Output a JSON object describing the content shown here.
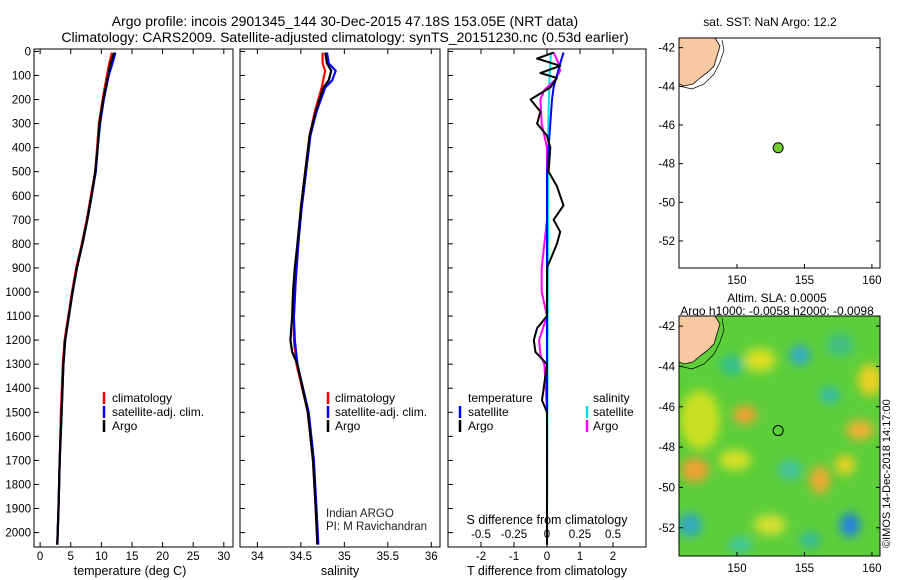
{
  "figure": {
    "title_line1": "Argo profile: incois 2901345_144 30-Dec-2015 47.18S 153.05E (NRT data)",
    "title_line2": "Climatology: CARS2009. Satellite-adjusted climatology: synTS_20151230.nc (0.53d earlier)",
    "watermark": "©IMOS 14-Dec-2018 14:17:00",
    "credit_line1": "Indian ARGO",
    "credit_line2": "PI: M Ravichandran"
  },
  "colors": {
    "climatology": "#ff0000",
    "satellite": "#0000ff",
    "argo": "#000000",
    "temp_diff": "#000000",
    "salt_diff": "#ff00ff",
    "salt_sat": "#00e0f0",
    "land": "#f8c8a0",
    "profile_dot": "#70d030"
  },
  "chart_data": [
    {
      "id": "temperature",
      "type": "line",
      "xlabel": "temperature (deg C)",
      "xlim": [
        -1,
        31.5
      ],
      "ylim": [
        2060,
        -10
      ],
      "xticks": [
        0,
        5,
        10,
        15,
        20,
        25,
        30
      ],
      "yticks": [
        0,
        100,
        200,
        300,
        400,
        500,
        600,
        700,
        800,
        900,
        1000,
        1100,
        1200,
        1300,
        1400,
        1500,
        1600,
        1700,
        1800,
        1900,
        2000
      ],
      "legend": [
        "climatology",
        "satellite-adj. clim.",
        "Argo"
      ],
      "series": [
        {
          "name": "climatology",
          "depth": [
            5,
            50,
            100,
            200,
            300,
            400,
            500,
            600,
            700,
            800,
            900,
            1000,
            1100,
            1200,
            1300,
            1500,
            1700,
            1900,
            2050
          ],
          "values": [
            11.7,
            11.3,
            10.9,
            10.2,
            9.6,
            9.3,
            9.0,
            8.3,
            7.6,
            6.8,
            5.9,
            5.2,
            4.6,
            4.0,
            3.7,
            3.4,
            3.2,
            3.0,
            2.8
          ]
        },
        {
          "name": "satellite-adj. clim.",
          "depth": [
            5,
            50,
            100,
            200,
            300,
            400,
            500,
            600,
            700,
            800,
            900,
            1000,
            1100,
            1200,
            1300,
            1500,
            1700,
            1900,
            2050
          ],
          "values": [
            12.3,
            11.8,
            11.2,
            10.4,
            9.8,
            9.4,
            9.1,
            8.4,
            7.7,
            6.9,
            6.0,
            5.3,
            4.7,
            4.1,
            3.8,
            3.5,
            3.2,
            3.0,
            2.8
          ]
        },
        {
          "name": "Argo",
          "depth": [
            5,
            50,
            100,
            200,
            300,
            400,
            500,
            600,
            700,
            800,
            900,
            1000,
            1100,
            1200,
            1300,
            1500,
            1700,
            1900,
            2050
          ],
          "values": [
            12.1,
            11.5,
            11.1,
            10.3,
            9.7,
            9.4,
            9.0,
            8.4,
            7.7,
            6.9,
            6.0,
            5.3,
            4.7,
            4.1,
            3.8,
            3.5,
            3.2,
            3.0,
            2.8
          ]
        }
      ]
    },
    {
      "id": "salinity",
      "type": "line",
      "xlabel": "salinity",
      "xlim": [
        33.8,
        36.1
      ],
      "ylim": [
        2060,
        -10
      ],
      "xticks": [
        34,
        34.5,
        35,
        35.5,
        36
      ],
      "xticklabels": [
        "34",
        "34.5",
        "35",
        "35.5",
        "36"
      ],
      "legend": [
        "climatology",
        "satellite-adj. clim.",
        "Argo"
      ],
      "series": [
        {
          "name": "climatology",
          "depth": [
            5,
            50,
            80,
            150,
            250,
            350,
            500,
            650,
            800,
            950,
            1100,
            1200,
            1300,
            1500,
            1700,
            1900,
            2050
          ],
          "values": [
            34.75,
            34.75,
            34.78,
            34.74,
            34.66,
            34.6,
            34.55,
            34.5,
            34.47,
            34.44,
            34.42,
            34.42,
            34.45,
            34.58,
            34.64,
            34.67,
            34.69
          ]
        },
        {
          "name": "satellite-adj. clim.",
          "depth": [
            5,
            50,
            80,
            120,
            150,
            250,
            350,
            500,
            650,
            800,
            950,
            1100,
            1200,
            1300,
            1500,
            1700,
            1900,
            2050
          ],
          "values": [
            34.8,
            34.82,
            34.9,
            34.86,
            34.78,
            34.68,
            34.61,
            34.56,
            34.51,
            34.47,
            34.44,
            34.42,
            34.43,
            34.46,
            34.59,
            34.65,
            34.68,
            34.7
          ]
        },
        {
          "name": "Argo",
          "depth": [
            5,
            50,
            80,
            120,
            150,
            250,
            350,
            500,
            650,
            800,
            900,
            1000,
            1100,
            1200,
            1250,
            1300,
            1500,
            1700,
            1900,
            2050
          ],
          "values": [
            34.78,
            34.8,
            34.85,
            34.82,
            34.76,
            34.67,
            34.6,
            34.55,
            34.5,
            34.46,
            34.43,
            34.41,
            34.4,
            34.38,
            34.4,
            34.46,
            34.58,
            34.64,
            34.67,
            34.69
          ]
        }
      ]
    },
    {
      "id": "difference",
      "type": "line",
      "xlabel": "T difference from climatology",
      "xlabel_top": "S difference from climatology",
      "xlim": [
        -3,
        3
      ],
      "ylim": [
        2060,
        -10
      ],
      "xticks": [
        -2,
        -1,
        0,
        1,
        2
      ],
      "sticks": [
        -0.5,
        -0.25,
        0,
        0.25,
        0.5
      ],
      "sticklabels": [
        "-0.5",
        "-0.25",
        "0",
        "0.25",
        "0.5"
      ],
      "legend_temp_header": "temperature",
      "legend_salt_header": "salinity",
      "legend_temp": [
        "satellite",
        "Argo"
      ],
      "legend_salt": [
        "satellite",
        "Argo"
      ],
      "series": [
        {
          "name": "T Argo - climatology",
          "depth": [
            5,
            30,
            60,
            90,
            110,
            150,
            200,
            250,
            300,
            350,
            400,
            500,
            560,
            600,
            640,
            700,
            750,
            800,
            900,
            1000,
            1100,
            1150,
            1200,
            1250,
            1300,
            1400,
            1450,
            1500,
            1600,
            2050
          ],
          "values": [
            0.2,
            -0.3,
            0.4,
            -0.2,
            0.3,
            0.1,
            -0.5,
            -0.2,
            -0.3,
            0.0,
            0.1,
            0.05,
            0.3,
            0.4,
            0.5,
            0.2,
            0.4,
            0.3,
            0.0,
            0.0,
            0.0,
            -0.3,
            -0.4,
            -0.35,
            0.0,
            -0.1,
            -0.15,
            0.0,
            0.0,
            0.0
          ]
        },
        {
          "name": "T satellite - climatology",
          "depth": [
            5,
            50,
            100,
            150,
            200,
            300,
            400,
            500,
            700,
            900,
            2050
          ],
          "values": [
            0.5,
            0.4,
            0.3,
            0.2,
            0.15,
            0.1,
            0.05,
            0.0,
            0.0,
            0.0,
            0.0
          ]
        },
        {
          "name": "S Argo - climatology",
          "depth": [
            5,
            40,
            80,
            120,
            160,
            200,
            300,
            400,
            500,
            700,
            900,
            1000,
            1100,
            1200,
            1260,
            1300,
            1400,
            1500,
            1600,
            2050
          ],
          "values": [
            0.05,
            0.08,
            0.1,
            0.06,
            -0.02,
            -0.05,
            -0.04,
            0.0,
            0.0,
            0.0,
            -0.04,
            -0.04,
            0.0,
            -0.06,
            -0.05,
            -0.02,
            -0.01,
            0.0,
            0.0,
            0.0
          ]
        },
        {
          "name": "S satellite - climatology",
          "depth": [
            5,
            100,
            300,
            2050
          ],
          "values": [
            0.03,
            0.02,
            0.01,
            0.0
          ]
        }
      ]
    },
    {
      "id": "sst_map",
      "type": "scatter",
      "title": "sat. SST: NaN Argo: 12.2",
      "xlim": [
        145.7,
        160.6
      ],
      "ylim": [
        -53.4,
        -41.5
      ],
      "xticks": [
        150,
        155,
        160
      ],
      "yticks": [
        -42,
        -44,
        -46,
        -48,
        -50,
        -52
      ],
      "point": {
        "lon": 153.05,
        "lat": -47.18
      }
    },
    {
      "id": "sla_map",
      "type": "heatmap",
      "title_line1": "Altim. SLA: 0.0005",
      "title_line2": "Argo h1000: -0.0058 h2000: -0.0098",
      "xlim": [
        145.7,
        160.6
      ],
      "ylim": [
        -53.4,
        -41.5
      ],
      "xticks": [
        150,
        155,
        160
      ],
      "yticks": [
        -42,
        -44,
        -46,
        -48,
        -50,
        -52
      ],
      "point": {
        "lon": 153.05,
        "lat": -47.18
      }
    }
  ]
}
